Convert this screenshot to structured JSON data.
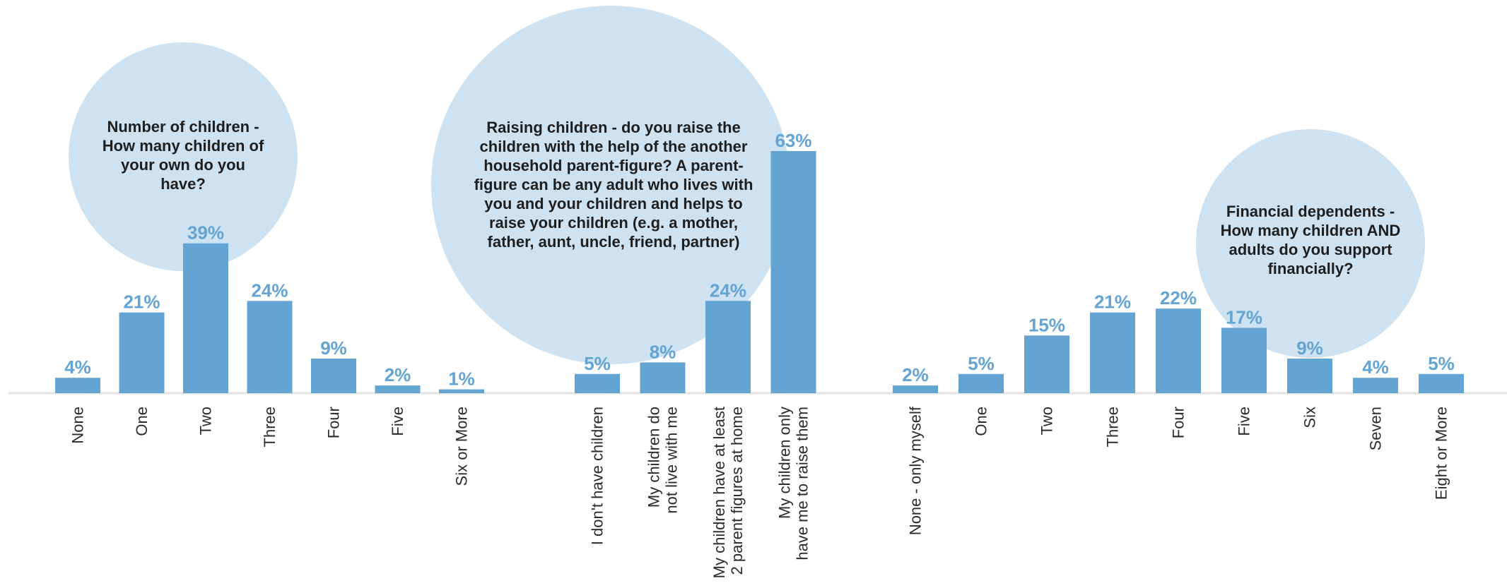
{
  "colors": {
    "bar": "#63a4d3",
    "value_label": "#63a4d3",
    "bubble": "#cfe2f1",
    "baseline": "#e3e3e3",
    "tick_text": "#2b2b2b",
    "question_text": "#1e1e1e"
  },
  "chart_data": [
    {
      "type": "bar",
      "title": "Number of children - How many children of your own do you have?",
      "categories": [
        "None",
        "One",
        "Two",
        "Three",
        "Four",
        "Five",
        "Six or More"
      ],
      "values": [
        4,
        21,
        39,
        24,
        9,
        2,
        1
      ],
      "value_labels": [
        "4%",
        "21%",
        "39%",
        "24%",
        "9%",
        "2%",
        "1%"
      ],
      "unit": "%",
      "ylim": [
        0,
        63
      ],
      "grid": false,
      "legend": "none"
    },
    {
      "type": "bar",
      "title": "Raising children - do you raise the children with the help of the another household parent-figure? A parent-figure can be any adult who lives with you and your children and helps to raise your children (e.g. a mother, father, aunt, uncle, friend, partner)",
      "categories": [
        "I don't have children",
        "My children do not live with me",
        "My children have at least 2 parent figures at home",
        "My children only have me to raise them"
      ],
      "values": [
        5,
        8,
        24,
        63
      ],
      "value_labels": [
        "5%",
        "8%",
        "24%",
        "63%"
      ],
      "unit": "%",
      "ylim": [
        0,
        63
      ],
      "grid": false,
      "legend": "none"
    },
    {
      "type": "bar",
      "title": "Financial dependents - How many children AND adults do you support financially?",
      "categories": [
        "None - only myself",
        "One",
        "Two",
        "Three",
        "Four",
        "Five",
        "Six",
        "Seven",
        "Eight or More"
      ],
      "values": [
        2,
        5,
        15,
        21,
        22,
        17,
        9,
        4,
        5
      ],
      "value_labels": [
        "2%",
        "5%",
        "15%",
        "21%",
        "22%",
        "17%",
        "9%",
        "4%",
        "5%"
      ],
      "unit": "%",
      "ylim": [
        0,
        63
      ],
      "grid": false,
      "legend": "none"
    }
  ],
  "questions": {
    "q1": "Number of children - How many children of your own do you have?",
    "q2": "Raising children - do you raise the children with the help of the another household parent-figure? A parent-figure can be any adult who lives with you and your children and helps to raise your children (e.g. a mother, father, aunt, uncle, friend, partner)",
    "q3": "Financial dependents - How many children AND adults do you support financially?"
  }
}
